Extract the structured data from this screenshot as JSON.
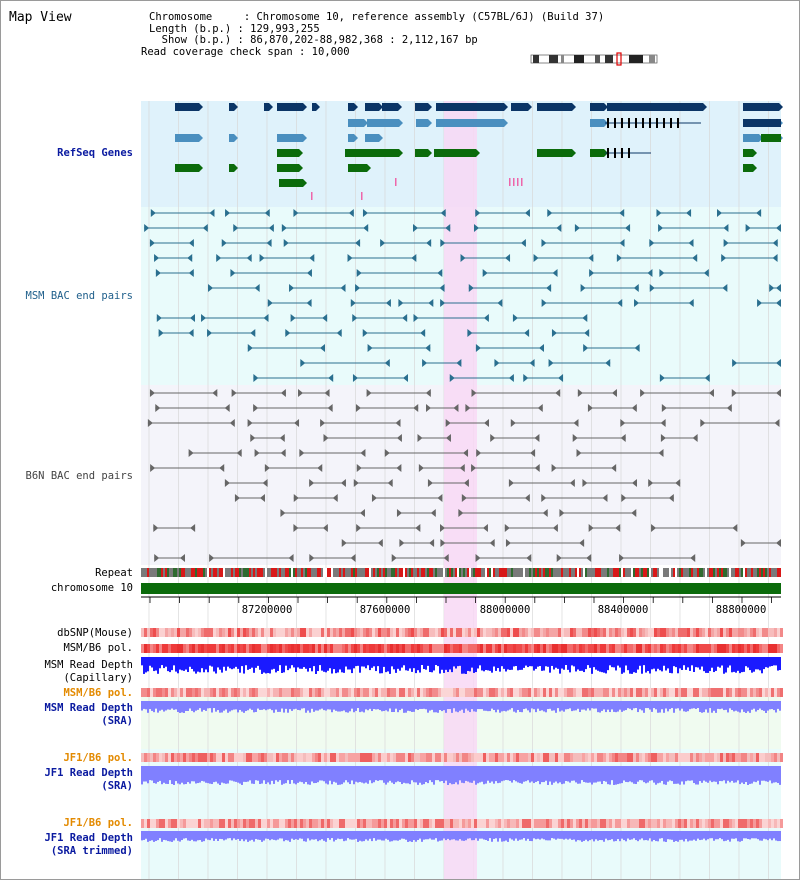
{
  "page": {
    "title": "Map View"
  },
  "info": {
    "chromosome": "Chromosome     : Chromosome 10, reference assembly (C57BL/6J) (Build 37)",
    "length": "Length (b.p.) : 129,993,255",
    "show": "  Show (b.p.) : 86,870,202-88,982,368 : 2,112,167 bp",
    "coverage": "Read coverage check span : 10,000"
  },
  "tracks": {
    "refseq": "RefSeq Genes",
    "msm_bac": "MSM BAC end pairs",
    "b6n_bac": "B6N BAC end pairs",
    "repeat": "Repeat",
    "chromosome": "chromosome 10",
    "dbsnp": "dbSNP(Mouse)",
    "msm_b6_pol": "MSM/B6 pol.",
    "msm_depth_cap_1": "MSM Read Depth",
    "msm_depth_cap_2": "(Capillary)",
    "msm_b6_pol_2": "MSM/B6 pol.",
    "msm_depth_sra_1": "MSM Read Depth",
    "msm_depth_sra_2": "(SRA)",
    "jf1_b6_pol": "JF1/B6 pol.",
    "jf1_depth_1": "JF1 Read Depth",
    "jf1_depth_2": "(SRA)",
    "jf1_b6_pol_2": "JF1/B6 pol.",
    "jf1_trim_1": "JF1 Read Depth",
    "jf1_trim_2": "(SRA trimmed)"
  },
  "axis": {
    "ticks": [
      "87200000",
      "87600000",
      "88000000",
      "88400000",
      "88800000"
    ]
  },
  "colors": {
    "refseq_bg": "#dff2fb",
    "bac_bg": "#e9fbfb",
    "b6n_bg": "#f4f4fa",
    "highlight": "#f8d8f4",
    "gene_dark": "#0b3566",
    "gene_mid": "#4a8fbf",
    "gene_green": "#0b6b0b",
    "msm_pair": "#2a6f8f",
    "b6n_pair": "#666666",
    "chromosome_bar": "#0b6b0b",
    "depth_blue": "#1a1aff",
    "depth_light": "#8080ff",
    "pol_red": "#ee3333"
  }
}
